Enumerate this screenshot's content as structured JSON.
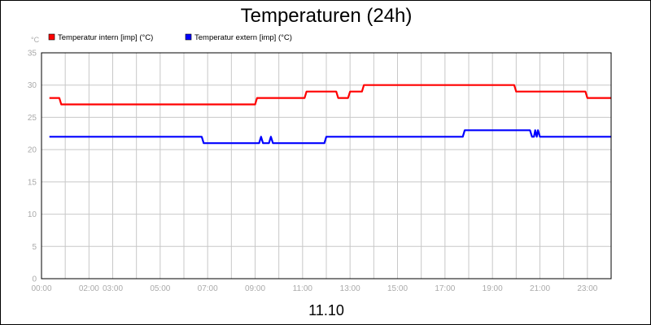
{
  "colors": {
    "intern": "#ff0000",
    "extern": "#0000ff",
    "grid": "#c8c8c8",
    "plot_border": "#000000"
  },
  "chart_data": {
    "type": "line",
    "title": "Temperaturen (24h)",
    "date_label": "11.10",
    "y_unit": "°C",
    "ylim": [
      0,
      35
    ],
    "y_ticks": [
      "0",
      "5",
      "10",
      "15",
      "20",
      "25",
      "30",
      "35"
    ],
    "xlim": [
      "00:00",
      "24:00"
    ],
    "x_ticks": [
      {
        "t": "00:00",
        "label": "00:00"
      },
      {
        "t": "02:00",
        "label": "02:00"
      },
      {
        "t": "03:00",
        "label": "03:00"
      },
      {
        "t": "05:00",
        "label": "05:00"
      },
      {
        "t": "07:00",
        "label": "07:00"
      },
      {
        "t": "09:00",
        "label": "09:00"
      },
      {
        "t": "11:00",
        "label": "11:00"
      },
      {
        "t": "13:00",
        "label": "13:00"
      },
      {
        "t": "15:00",
        "label": "15:00"
      },
      {
        "t": "17:00",
        "label": "17:00"
      },
      {
        "t": "19:00",
        "label": "19:00"
      },
      {
        "t": "21:00",
        "label": "21:00"
      },
      {
        "t": "23:00",
        "label": "23:00"
      }
    ],
    "x_grid": [
      "00:00",
      "01:00",
      "02:00",
      "03:00",
      "04:00",
      "05:00",
      "06:00",
      "07:00",
      "08:00",
      "09:00",
      "10:00",
      "11:00",
      "12:00",
      "13:00",
      "14:00",
      "15:00",
      "16:00",
      "17:00",
      "18:00",
      "19:00",
      "20:00",
      "21:00",
      "22:00",
      "23:00",
      "24:00"
    ],
    "grid": true,
    "legend_position": "top-left",
    "series": [
      {
        "name": "Temperatur intern [imp] (°C)",
        "color_key": "intern",
        "points": [
          [
            "00:20",
            28
          ],
          [
            "00:45",
            28
          ],
          [
            "00:50",
            27
          ],
          [
            "09:00",
            27
          ],
          [
            "09:05",
            28
          ],
          [
            "11:05",
            28
          ],
          [
            "11:10",
            29
          ],
          [
            "12:25",
            29
          ],
          [
            "12:30",
            28
          ],
          [
            "12:55",
            28
          ],
          [
            "13:00",
            29
          ],
          [
            "13:30",
            29
          ],
          [
            "13:35",
            30
          ],
          [
            "19:55",
            30
          ],
          [
            "20:00",
            29
          ],
          [
            "22:55",
            29
          ],
          [
            "23:00",
            28
          ],
          [
            "24:00",
            28
          ]
        ]
      },
      {
        "name": "Temperatur extern [imp] (°C)",
        "color_key": "extern",
        "points": [
          [
            "00:20",
            22
          ],
          [
            "06:45",
            22
          ],
          [
            "06:50",
            21
          ],
          [
            "09:10",
            21
          ],
          [
            "09:15",
            22
          ],
          [
            "09:20",
            21
          ],
          [
            "09:35",
            21
          ],
          [
            "09:40",
            22
          ],
          [
            "09:45",
            21
          ],
          [
            "11:55",
            21
          ],
          [
            "12:00",
            22
          ],
          [
            "17:45",
            22
          ],
          [
            "17:50",
            23
          ],
          [
            "20:35",
            23
          ],
          [
            "20:40",
            22
          ],
          [
            "20:45",
            22
          ],
          [
            "20:48",
            23
          ],
          [
            "20:52",
            22
          ],
          [
            "20:55",
            23
          ],
          [
            "21:00",
            22
          ],
          [
            "24:00",
            22
          ]
        ]
      }
    ]
  }
}
